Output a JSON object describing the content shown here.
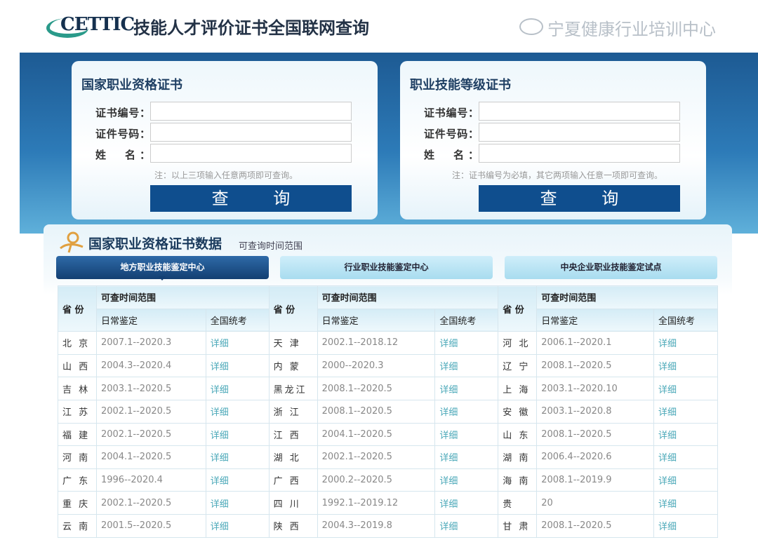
{
  "header": {
    "logo_text": "CETTIC",
    "title": "技能人才评价证书全国联网查询"
  },
  "panels": [
    {
      "title": "国家职业资格证书",
      "fields": [
        {
          "label": "证书编号：",
          "value": ""
        },
        {
          "label": "证件号码：",
          "value": ""
        },
        {
          "label": "姓　名：",
          "value": ""
        }
      ],
      "note": "注：以上三项输入任意两项即可查询。",
      "button": "查 询"
    },
    {
      "title": "职业技能等级证书",
      "fields": [
        {
          "label": "证书编号：",
          "value": ""
        },
        {
          "label": "证件号码：",
          "value": ""
        },
        {
          "label": "姓　名：",
          "value": ""
        }
      ],
      "note": "注：证书编号为必填，其它两项输入任意一项即可查询。",
      "button": "查 询"
    }
  ],
  "section": {
    "title": "国家职业资格证书数据",
    "subtitle": "可查询时间范围"
  },
  "tabs": [
    {
      "label": "地方职业技能鉴定中心",
      "active": true
    },
    {
      "label": "行业职业技能鉴定中心",
      "active": false
    },
    {
      "label": "中央企业职业技能鉴定试点",
      "active": false
    }
  ],
  "table": {
    "headers": {
      "province": "省 份",
      "range": "可查时间范围",
      "daily": "日常鉴定",
      "national": "全国统考"
    },
    "link_label": "详细",
    "rows": [
      [
        {
          "p": "北 京",
          "d": "2007.1--2020.3"
        },
        {
          "p": "天 津",
          "d": "2002.1--2018.12"
        },
        {
          "p": "河 北",
          "d": "2006.1--2020.1"
        }
      ],
      [
        {
          "p": "山 西",
          "d": "2004.3--2020.4"
        },
        {
          "p": "内 蒙",
          "d": "2000--2020.3"
        },
        {
          "p": "辽 宁",
          "d": "2008.1--2020.5"
        }
      ],
      [
        {
          "p": "吉 林",
          "d": "2003.1--2020.5"
        },
        {
          "p": "黑龙江",
          "d": "2008.1--2020.5"
        },
        {
          "p": "上 海",
          "d": "2003.1--2020.10"
        }
      ],
      [
        {
          "p": "江 苏",
          "d": "2002.1--2020.5"
        },
        {
          "p": "浙 江",
          "d": "2008.1--2020.5"
        },
        {
          "p": "安 徽",
          "d": "2003.1--2020.8"
        }
      ],
      [
        {
          "p": "福 建",
          "d": "2002.1--2020.5"
        },
        {
          "p": "江 西",
          "d": "2004.1--2020.5"
        },
        {
          "p": "山 东",
          "d": "2008.1--2020.5"
        }
      ],
      [
        {
          "p": "河 南",
          "d": "2004.1--2020.5"
        },
        {
          "p": "湖 北",
          "d": "2002.1--2020.5"
        },
        {
          "p": "湖 南",
          "d": "2006.4--2020.6"
        }
      ],
      [
        {
          "p": "广 东",
          "d": "1996--2020.4"
        },
        {
          "p": "广 西",
          "d": "2000.2--2020.5"
        },
        {
          "p": "海 南",
          "d": "2008.1--2019.9"
        }
      ],
      [
        {
          "p": "重 庆",
          "d": "2002.1--2020.5"
        },
        {
          "p": "四 川",
          "d": "1992.1--2019.12"
        },
        {
          "p": "贵",
          "d": "20"
        }
      ],
      [
        {
          "p": "云 南",
          "d": "2001.5--2020.5"
        },
        {
          "p": "陕 西",
          "d": "2004.3--2019.8"
        },
        {
          "p": "甘 肃",
          "d": "2008.1--2020.5"
        }
      ]
    ]
  },
  "watermark": "宁夏健康行业培训中心",
  "colors": {
    "banner": "#1d5a93",
    "button": "#0f4e8e",
    "link": "#4aa8b8",
    "tab_active": "#133f72"
  }
}
